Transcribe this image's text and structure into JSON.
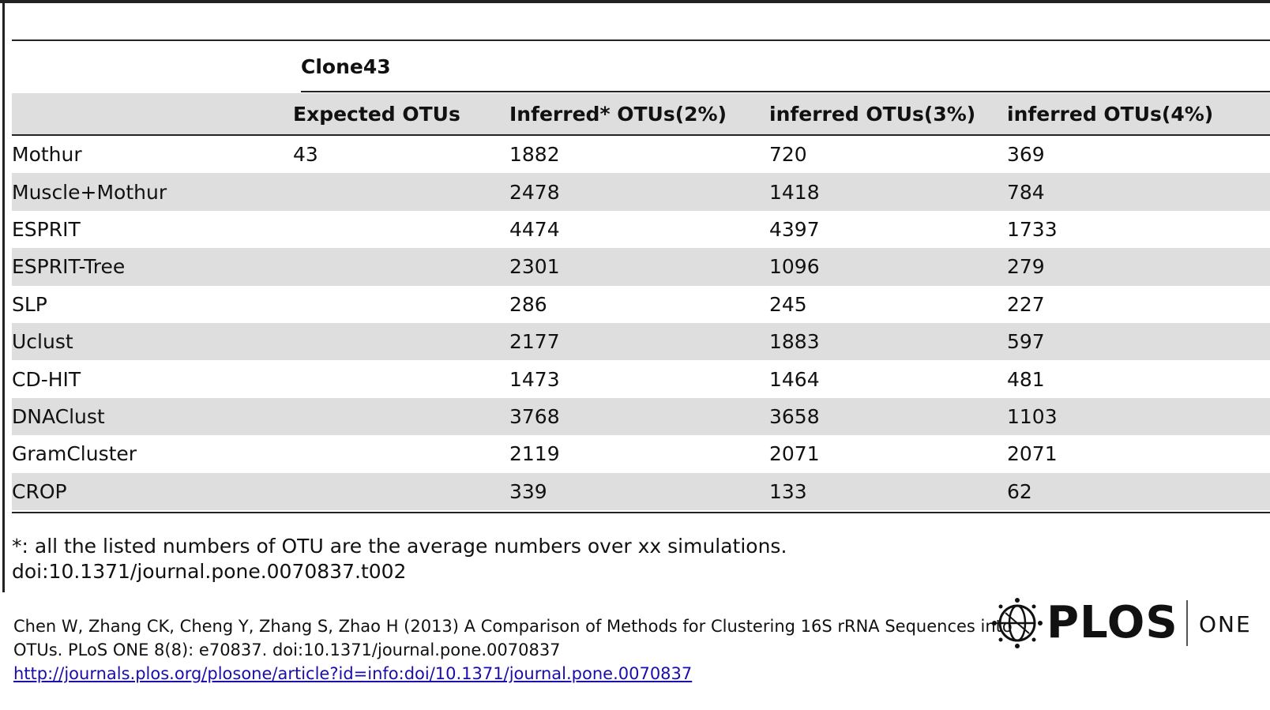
{
  "table": {
    "group_header": "Clone43",
    "columns": [
      "",
      "Expected OTUs",
      "Inferred* OTUs(2%)",
      "inferred OTUs(3%)",
      "inferred OTUs(4%)"
    ],
    "rows": [
      [
        "Mothur",
        "43",
        "1882",
        "720",
        "369"
      ],
      [
        "Muscle+Mothur",
        "",
        "2478",
        "1418",
        "784"
      ],
      [
        "ESPRIT",
        "",
        "4474",
        "4397",
        "1733"
      ],
      [
        "ESPRIT-Tree",
        "",
        "2301",
        "1096",
        "279"
      ],
      [
        "SLP",
        "",
        "286",
        "245",
        "227"
      ],
      [
        "Uclust",
        "",
        "2177",
        "1883",
        "597"
      ],
      [
        "CD-HIT",
        "",
        "1473",
        "1464",
        "481"
      ],
      [
        "DNAClust",
        "",
        "3768",
        "3658",
        "1103"
      ],
      [
        "GramCluster",
        "",
        "2119",
        "2071",
        "2071"
      ],
      [
        "CROP",
        "",
        "339",
        "133",
        "62"
      ]
    ]
  },
  "footnote": {
    "note": "*: all the listed numbers of OTU are the average numbers over xx simulations.",
    "doi": "doi:10.1371/journal.pone.0070837.t002"
  },
  "citation": {
    "line1": "Chen W, Zhang CK, Cheng Y, Zhang S, Zhao H (2013) A Comparison of Methods for Clustering 16S rRNA Sequences into",
    "line2": "OTUs. PLoS ONE 8(8): e70837. doi:10.1371/journal.pone.0070837",
    "link": "http://journals.plos.org/plosone/article?id=info:doi/10.1371/journal.pone.0070837"
  },
  "logo": {
    "word": "PLOS",
    "sub": "ONE",
    "icon": "plos-globe-icon"
  }
}
